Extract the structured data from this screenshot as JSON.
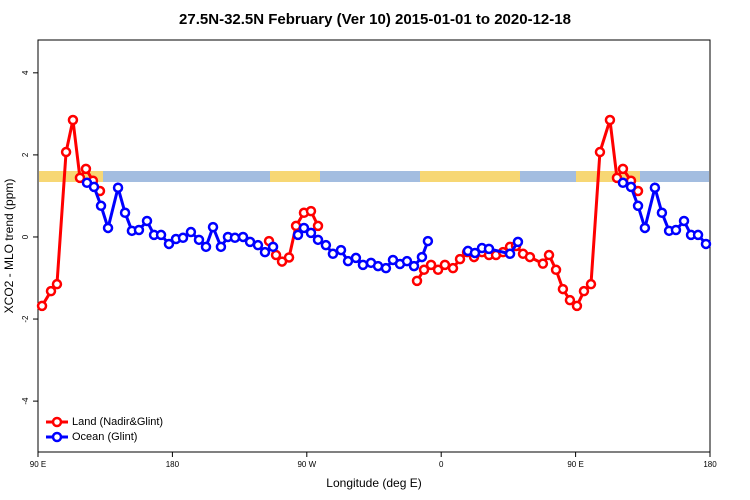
{
  "chart_data": {
    "type": "line",
    "title": "27.5N-32.5N February (Ver 10)   2015-01-01 to 2020-12-18",
    "x_label": "Longitude (deg E)",
    "y_label": "XCO2 - MLO trend (ppm)",
    "xlim": [
      90,
      540
    ],
    "ylim": [
      -5.24,
      4.8
    ],
    "xticks": [
      {
        "value": 90,
        "label": "90 E"
      },
      180,
      {
        "value": 270,
        "label": "90 W"
      },
      {
        "value": 360,
        "label": "0"
      },
      {
        "value": 450,
        "label": "90 E"
      },
      {
        "value": 540,
        "label": "180"
      }
    ],
    "yticks": [
      -4,
      -2,
      0,
      2,
      4
    ],
    "legend": "bottom-left",
    "series": [
      {
        "name": "Land (Nadir&Glint)",
        "color": "#ff0000",
        "x": [
          92.7,
          98.7,
          102.7,
          108.8,
          113.4,
          118.1,
          122.1,
          126.8,
          131.5,
          null,
          244.7,
          249.4,
          253.4,
          258.1,
          262.8,
          268.1,
          272.8,
          277.5,
          null,
          343.8,
          348.5,
          353.2,
          357.9,
          362.5,
          367.9,
          372.6,
          377.3,
          382.0,
          387.3,
          392.0,
          396.7,
          401.4,
          406.1,
          410.1,
          414.8,
          419.4,
          428.1,
          432.2,
          436.9,
          441.5,
          446.2,
          450.9,
          455.6,
          460.3,
          466.3,
          473.0,
          477.7,
          481.7,
          487.1,
          491.8
        ],
        "values": [
          -1.68,
          -1.32,
          -1.15,
          2.07,
          2.85,
          1.44,
          1.66,
          1.37,
          1.12,
          null,
          -0.1,
          -0.44,
          -0.6,
          -0.5,
          0.27,
          0.59,
          0.63,
          0.27,
          null,
          -1.07,
          -0.8,
          -0.68,
          -0.8,
          -0.68,
          -0.76,
          -0.54,
          -0.37,
          -0.49,
          -0.37,
          -0.44,
          -0.44,
          -0.37,
          -0.24,
          -0.22,
          -0.41,
          -0.49,
          -0.65,
          -0.44,
          -0.8,
          -1.27,
          -1.54,
          -1.68,
          -1.32,
          -1.15,
          2.07,
          2.85,
          1.44,
          1.66,
          1.37,
          1.12
        ]
      },
      {
        "name": "Ocean (Glint)",
        "color": "#0000ff",
        "x": [
          122.8,
          127.5,
          132.2,
          136.9,
          143.6,
          148.3,
          152.9,
          157.6,
          163.0,
          167.7,
          172.4,
          177.7,
          182.4,
          187.1,
          192.4,
          197.8,
          202.5,
          207.2,
          212.5,
          217.2,
          221.9,
          227.3,
          232.0,
          237.3,
          242.0,
          247.4,
          null,
          264.1,
          268.1,
          272.8,
          277.5,
          282.8,
          287.5,
          292.9,
          297.6,
          302.9,
          307.6,
          313.0,
          317.7,
          323.0,
          327.7,
          332.4,
          337.1,
          341.8,
          347.1,
          351.1,
          null,
          377.9,
          382.6,
          387.3,
          392.0,
          406.1,
          411.4,
          null,
          481.7,
          487.1,
          491.8,
          496.4,
          503.1,
          507.8,
          512.6,
          517.2,
          522.6,
          527.3,
          532.0,
          537.3
        ],
        "values": [
          1.32,
          1.22,
          0.76,
          0.22,
          1.2,
          0.59,
          0.15,
          0.17,
          0.39,
          0.05,
          0.05,
          -0.17,
          -0.05,
          -0.02,
          0.12,
          -0.07,
          -0.24,
          0.24,
          -0.24,
          0,
          -0.02,
          0,
          -0.12,
          -0.2,
          -0.37,
          -0.24,
          null,
          0.05,
          0.22,
          0.1,
          -0.07,
          -0.2,
          -0.41,
          -0.32,
          -0.59,
          -0.51,
          -0.68,
          -0.63,
          -0.71,
          -0.76,
          -0.56,
          -0.66,
          -0.59,
          -0.71,
          -0.49,
          -0.1,
          null,
          -0.34,
          -0.39,
          -0.27,
          -0.29,
          -0.41,
          -0.12,
          null,
          1.32,
          1.22,
          0.76,
          0.22,
          1.2,
          0.59,
          0.15,
          0.17,
          0.39,
          0.05,
          0.05,
          -0.17
        ]
      }
    ]
  }
}
